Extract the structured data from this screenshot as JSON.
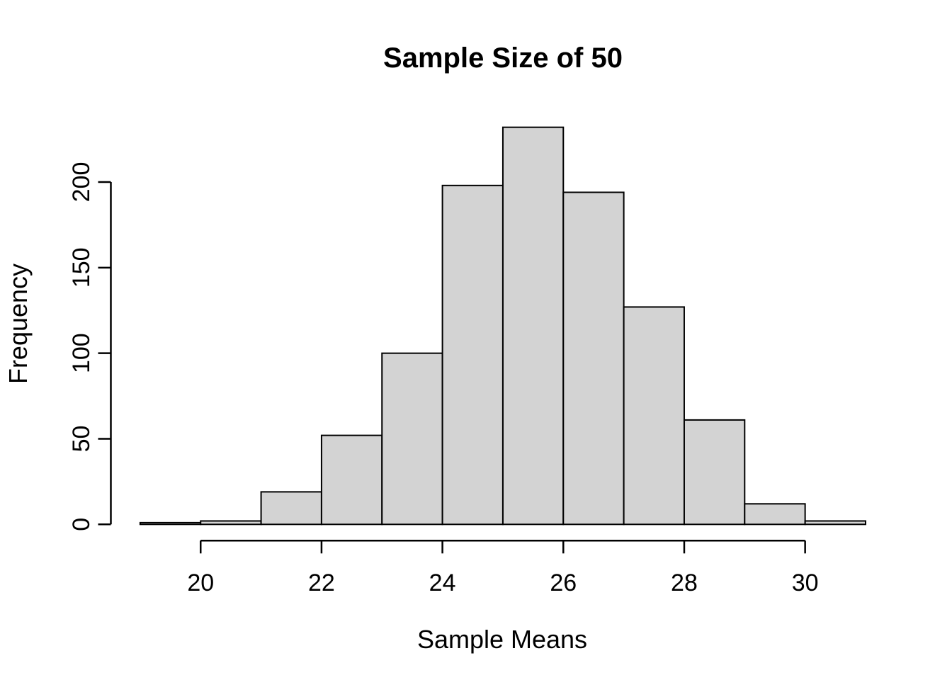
{
  "page": {
    "background": "#ffffff",
    "text_color": "#000000"
  },
  "chart_data": {
    "type": "bar",
    "subtype": "histogram",
    "title": "Sample Size of 50",
    "xlabel": "Sample Means",
    "ylabel": "Frequency",
    "bin_width": 1,
    "bin_edges": [
      19,
      20,
      21,
      22,
      23,
      24,
      25,
      26,
      27,
      28,
      29,
      30,
      31
    ],
    "counts": [
      1,
      2,
      19,
      52,
      100,
      198,
      232,
      194,
      127,
      61,
      12,
      2
    ],
    "total_samples": 1000,
    "x_ticks": [
      20,
      22,
      24,
      26,
      28,
      30
    ],
    "y_ticks": [
      0,
      50,
      100,
      150,
      200
    ],
    "xlim": [
      19,
      31
    ],
    "ylim": [
      0,
      200
    ],
    "grid": false,
    "legend": null,
    "bar_fill": "#d3d3d3",
    "bar_stroke": "#000000",
    "axis_color": "#000000"
  }
}
